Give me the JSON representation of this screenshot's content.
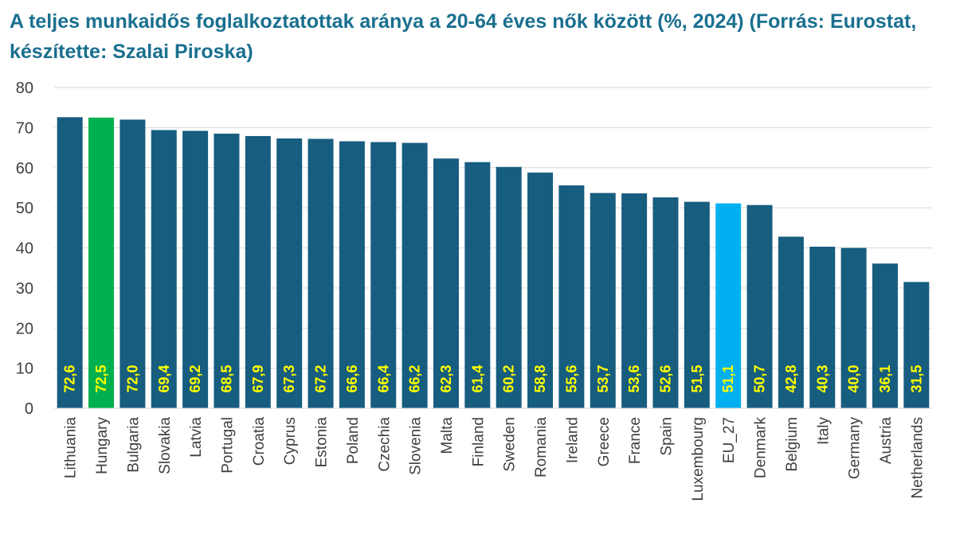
{
  "chart_data": {
    "type": "bar",
    "title": "A teljes munkaidős foglalkoztatottak aránya a 20-64 éves nők között (%, 2024) (Forrás: Eurostat, készítette: Szalai Piroska)",
    "xlabel": "",
    "ylabel": "",
    "ylim": [
      0,
      80
    ],
    "yticks": [
      0,
      10,
      20,
      30,
      40,
      50,
      60,
      70,
      80
    ],
    "grid": true,
    "categories": [
      "Lithuania",
      "Hungary",
      "Bulgaria",
      "Slovakia",
      "Latvia",
      "Portugal",
      "Croatia",
      "Cyprus",
      "Estonia",
      "Poland",
      "Czechia",
      "Slovenia",
      "Malta",
      "Finland",
      "Sweden",
      "Romania",
      "Ireland",
      "Greece",
      "France",
      "Spain",
      "Luxembourg",
      "EU_27",
      "Denmark",
      "Belgium",
      "Italy",
      "Germany",
      "Austria",
      "Netherlands"
    ],
    "values": [
      72.6,
      72.5,
      72.0,
      69.4,
      69.2,
      68.5,
      67.9,
      67.3,
      67.2,
      66.6,
      66.4,
      66.2,
      62.3,
      61.4,
      60.2,
      58.8,
      55.6,
      53.7,
      53.6,
      52.6,
      51.5,
      51.1,
      50.7,
      42.8,
      40.3,
      40.0,
      36.1,
      31.5
    ],
    "value_labels": [
      "72,6",
      "72,5",
      "72,0",
      "69,4",
      "69,2",
      "68,5",
      "67,9",
      "67,3",
      "67,2",
      "66,6",
      "66,4",
      "66,2",
      "62,3",
      "61,4",
      "60,2",
      "58,8",
      "55,6",
      "53,7",
      "53,6",
      "52,6",
      "51,5",
      "51,1",
      "50,7",
      "42,8",
      "40,3",
      "40,0",
      "36,1",
      "31,5"
    ],
    "colors": {
      "default_bar": "#175d7f",
      "highlight_Hungary": "#00b050",
      "highlight_EU_27": "#00b0f0",
      "data_label": "#ffff00",
      "title": "#1a6f8f",
      "axis_text": "#404040",
      "grid": "#d9d9d9"
    }
  }
}
